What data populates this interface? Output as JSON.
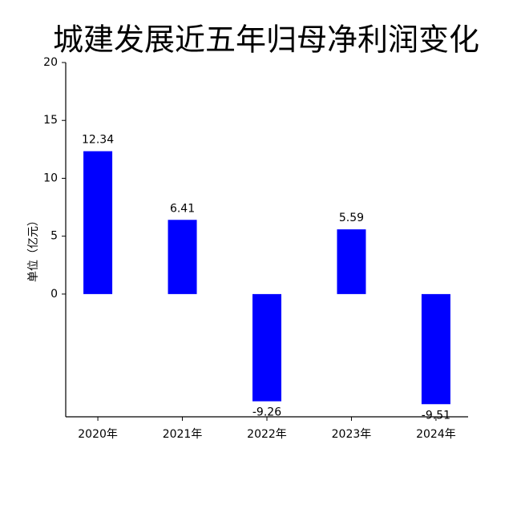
{
  "chart_data": {
    "type": "bar",
    "title": "城建发展近五年归母净利润变化",
    "y_label": "单位（亿元）",
    "categories": [
      "2020年",
      "2021年",
      "2022年",
      "2023年",
      "2024年"
    ],
    "values": [
      12.34,
      6.41,
      -9.26,
      5.59,
      -9.51
    ],
    "color": "#0000ff",
    "ylim": [
      -10.6,
      20
    ],
    "yticks": [
      0,
      5,
      10,
      15,
      20
    ],
    "grid": false
  }
}
